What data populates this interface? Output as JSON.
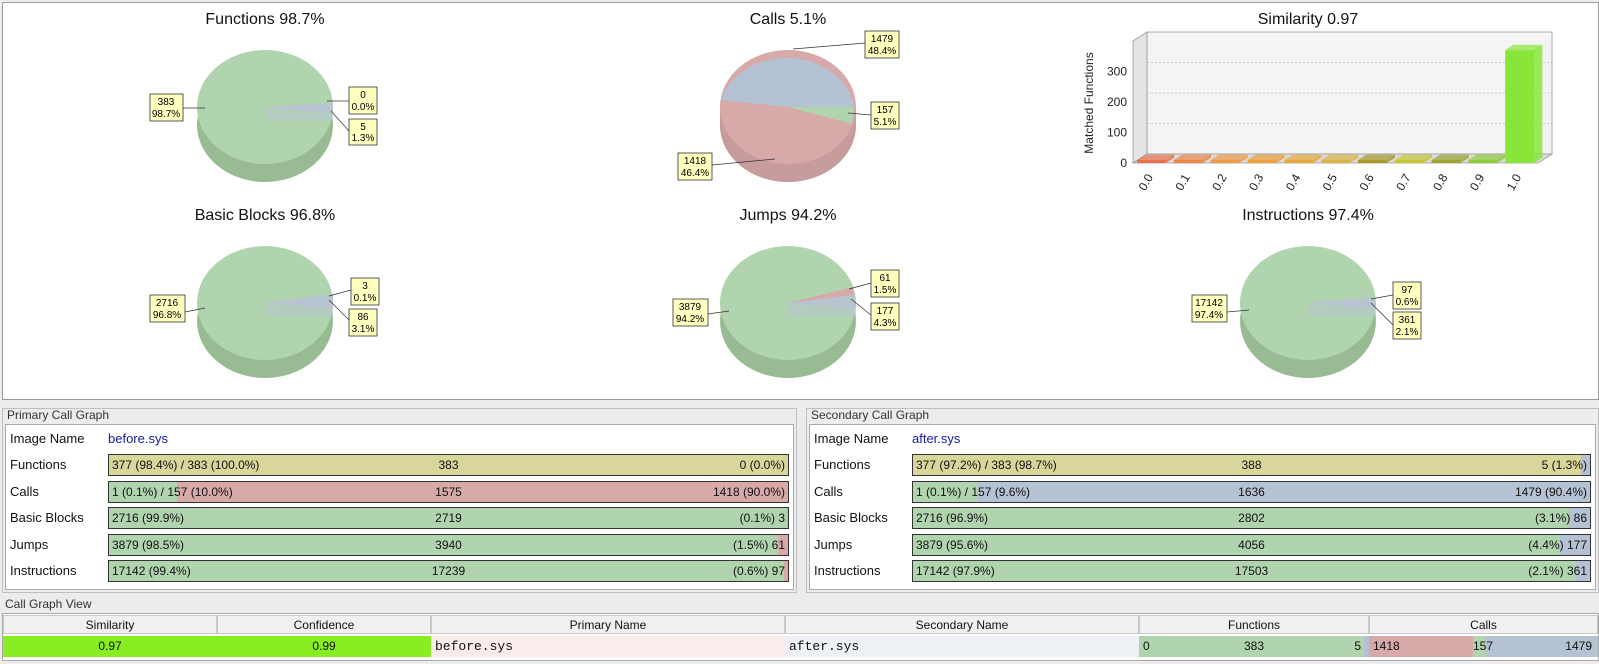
{
  "charts": {
    "functions": {
      "title": "Functions 98.7%",
      "labels": [
        {
          "count": "383",
          "pct": "98.7%"
        },
        {
          "count": "0",
          "pct": "0.0%"
        },
        {
          "count": "5",
          "pct": "1.3%"
        }
      ]
    },
    "calls": {
      "title": "Calls 5.1%",
      "labels": [
        {
          "count": "1479",
          "pct": "48.4%"
        },
        {
          "count": "157",
          "pct": "5.1%"
        },
        {
          "count": "1418",
          "pct": "46.4%"
        }
      ]
    },
    "similarity": {
      "title": "Similarity 0.97"
    },
    "basic_blocks": {
      "title": "Basic Blocks 96.8%",
      "labels": [
        {
          "count": "2716",
          "pct": "96.8%"
        },
        {
          "count": "3",
          "pct": "0.1%"
        },
        {
          "count": "86",
          "pct": "3.1%"
        }
      ]
    },
    "jumps": {
      "title": "Jumps 94.2%",
      "labels": [
        {
          "count": "3879",
          "pct": "94.2%"
        },
        {
          "count": "61",
          "pct": "1.5%"
        },
        {
          "count": "177",
          "pct": "4.3%"
        }
      ]
    },
    "instructions": {
      "title": "Instructions 97.4%",
      "labels": [
        {
          "count": "17142",
          "pct": "97.4%"
        },
        {
          "count": "97",
          "pct": "0.6%"
        },
        {
          "count": "361",
          "pct": "2.1%"
        }
      ]
    }
  },
  "chart_data": {
    "type": "bar",
    "title": "Similarity 0.97",
    "xlabel": "",
    "ylabel": "Matched Functions",
    "categories": [
      "0.0",
      "0.1",
      "0.2",
      "0.3",
      "0.4",
      "0.5",
      "0.6",
      "0.7",
      "0.8",
      "0.9",
      "1.0"
    ],
    "values": [
      4,
      4,
      4,
      4,
      4,
      4,
      4,
      4,
      4,
      8,
      370
    ],
    "ylim": [
      0,
      400
    ],
    "yticks": [
      "0",
      "100",
      "200",
      "300"
    ],
    "grid": true,
    "colors": [
      "#e8734a",
      "#ec8748",
      "#ef9a45",
      "#ee9f3c",
      "#e8a93a",
      "#d8b445",
      "#a89a2a",
      "#c6c735",
      "#9aa42e",
      "#8ccc3a",
      "#88e63a"
    ]
  },
  "primary": {
    "title": "Primary Call Graph",
    "image_label": "Image Name",
    "image_name": "before.sys",
    "rows": [
      {
        "label": "Functions",
        "left": "377 (98.4%) / 383 (100.0%)",
        "center": "383",
        "right": "0 (0.0%)",
        "fill": 1.0,
        "fill_color": "#d8d69a"
      },
      {
        "label": "Calls",
        "left": "1 (0.1%) / 157 (10.0%)",
        "center": "1575",
        "right": "1418 (90.0%)",
        "fill": 0.1,
        "fill_color": "#b0d4ae"
      },
      {
        "label": "Basic Blocks",
        "left": "2716 (99.9%)",
        "center": "2719",
        "right": "(0.1%) 3",
        "fill": 0.999,
        "fill_color": "#b0d4ae"
      },
      {
        "label": "Jumps",
        "left": "3879 (98.5%)",
        "center": "3940",
        "right": "(1.5%) 61",
        "fill": 0.985,
        "fill_color": "#b0d4ae"
      },
      {
        "label": "Instructions",
        "left": "17142 (99.4%)",
        "center": "17239",
        "right": "(0.6%) 97",
        "fill": 0.994,
        "fill_color": "#b0d4ae"
      }
    ]
  },
  "secondary": {
    "title": "Secondary Call Graph",
    "image_label": "Image Name",
    "image_name": "after.sys",
    "rows": [
      {
        "label": "Functions",
        "left": "377 (97.2%) / 383 (98.7%)",
        "center": "388",
        "right": "5 (1.3%)",
        "fill": 0.987,
        "fill_color": "#d8d69a"
      },
      {
        "label": "Calls",
        "left": "1 (0.1%) / 157 (9.6%)",
        "center": "1636",
        "right": "1479 (90.4%)",
        "fill": 0.096,
        "fill_color": "#b0d4ae"
      },
      {
        "label": "Basic Blocks",
        "left": "2716 (96.9%)",
        "center": "2802",
        "right": "(3.1%) 86",
        "fill": 0.969,
        "fill_color": "#b0d4ae"
      },
      {
        "label": "Jumps",
        "left": "3879 (95.6%)",
        "center": "4056",
        "right": "(4.4%) 177",
        "fill": 0.956,
        "fill_color": "#b0d4ae"
      },
      {
        "label": "Instructions",
        "left": "17142 (97.9%)",
        "center": "17503",
        "right": "(2.1%) 361",
        "fill": 0.979,
        "fill_color": "#b0d4ae"
      }
    ]
  },
  "call_graph_view": {
    "title": "Call Graph View",
    "headers": {
      "similarity": "Similarity",
      "confidence": "Confidence",
      "primary_name": "Primary Name",
      "secondary_name": "Secondary Name",
      "functions": "Functions",
      "calls": "Calls"
    },
    "row": {
      "similarity": "0.97",
      "confidence": "0.99",
      "primary_name": "before.sys",
      "secondary_name": "after.sys",
      "functions": {
        "left": "0",
        "center": "383",
        "right": "5"
      },
      "calls": {
        "left": "1418",
        "center": "157",
        "right": "1479"
      }
    }
  }
}
